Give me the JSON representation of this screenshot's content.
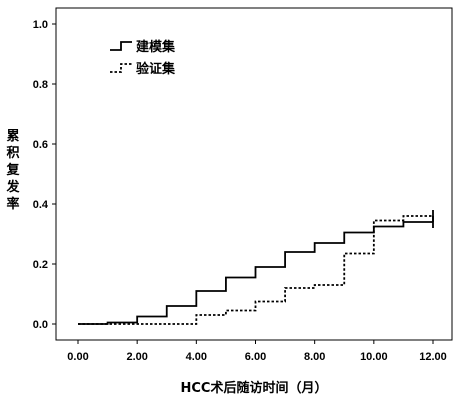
{
  "chart_data": {
    "type": "line",
    "step": true,
    "title": "",
    "xlabel": "HCC术后随访时间（月）",
    "ylabel": "累积复发率",
    "xlim": [
      0,
      12
    ],
    "ylim": [
      0,
      1.0
    ],
    "x_ticks": [
      "0.00",
      "2.00",
      "4.00",
      "6.00",
      "8.00",
      "10.00",
      "12.00"
    ],
    "y_ticks": [
      "0.0",
      "0.2",
      "0.4",
      "0.6",
      "0.8",
      "1.0"
    ],
    "grid": false,
    "legend_position": "top-left",
    "series": [
      {
        "name": "建模集",
        "style": "solid",
        "color": "#000000",
        "points": [
          [
            0,
            0
          ],
          [
            1,
            0.005
          ],
          [
            2,
            0.025
          ],
          [
            3,
            0.06
          ],
          [
            4,
            0.11
          ],
          [
            5,
            0.155
          ],
          [
            6,
            0.19
          ],
          [
            7,
            0.24
          ],
          [
            8,
            0.27
          ],
          [
            9,
            0.305
          ],
          [
            10,
            0.325
          ],
          [
            11,
            0.34
          ],
          [
            12,
            0.34
          ]
        ],
        "censor": [
          [
            12,
            0.34
          ]
        ]
      },
      {
        "name": "验证集",
        "style": "dotted",
        "color": "#000000",
        "points": [
          [
            0,
            0
          ],
          [
            4,
            0.03
          ],
          [
            5,
            0.045
          ],
          [
            6,
            0.075
          ],
          [
            7,
            0.12
          ],
          [
            8,
            0.13
          ],
          [
            9,
            0.235
          ],
          [
            10,
            0.345
          ],
          [
            11,
            0.36
          ],
          [
            12,
            0.36
          ]
        ],
        "censor": [
          [
            12,
            0.36
          ]
        ]
      }
    ]
  }
}
